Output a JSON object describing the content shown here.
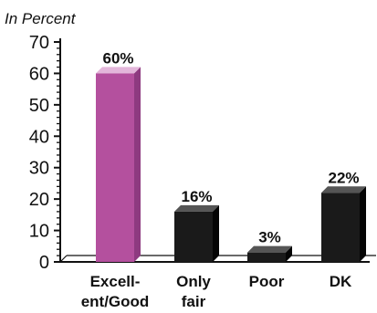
{
  "chart_data": {
    "type": "bar",
    "unit_label": "In Percent",
    "categories": [
      [
        "Excell-",
        "ent/Good"
      ],
      [
        "Only",
        "fair"
      ],
      [
        "Poor"
      ],
      [
        "DK"
      ]
    ],
    "values": [
      60,
      16,
      3,
      22
    ],
    "value_labels": [
      "60%",
      "16%",
      "3%",
      "22%"
    ],
    "ylim": [
      0,
      70
    ],
    "yticks": [
      0,
      10,
      20,
      30,
      40,
      50,
      60,
      70
    ],
    "grid": false,
    "colors": {
      "highlight": "#b4509e",
      "highlight_side": "#8e3a80",
      "highlight_top": "#e3b6da",
      "bar": "#1a1a1a",
      "bar_side": "#050505",
      "bar_top": "#555555",
      "highlight_text": "#b4509e",
      "text": "#111111"
    }
  }
}
